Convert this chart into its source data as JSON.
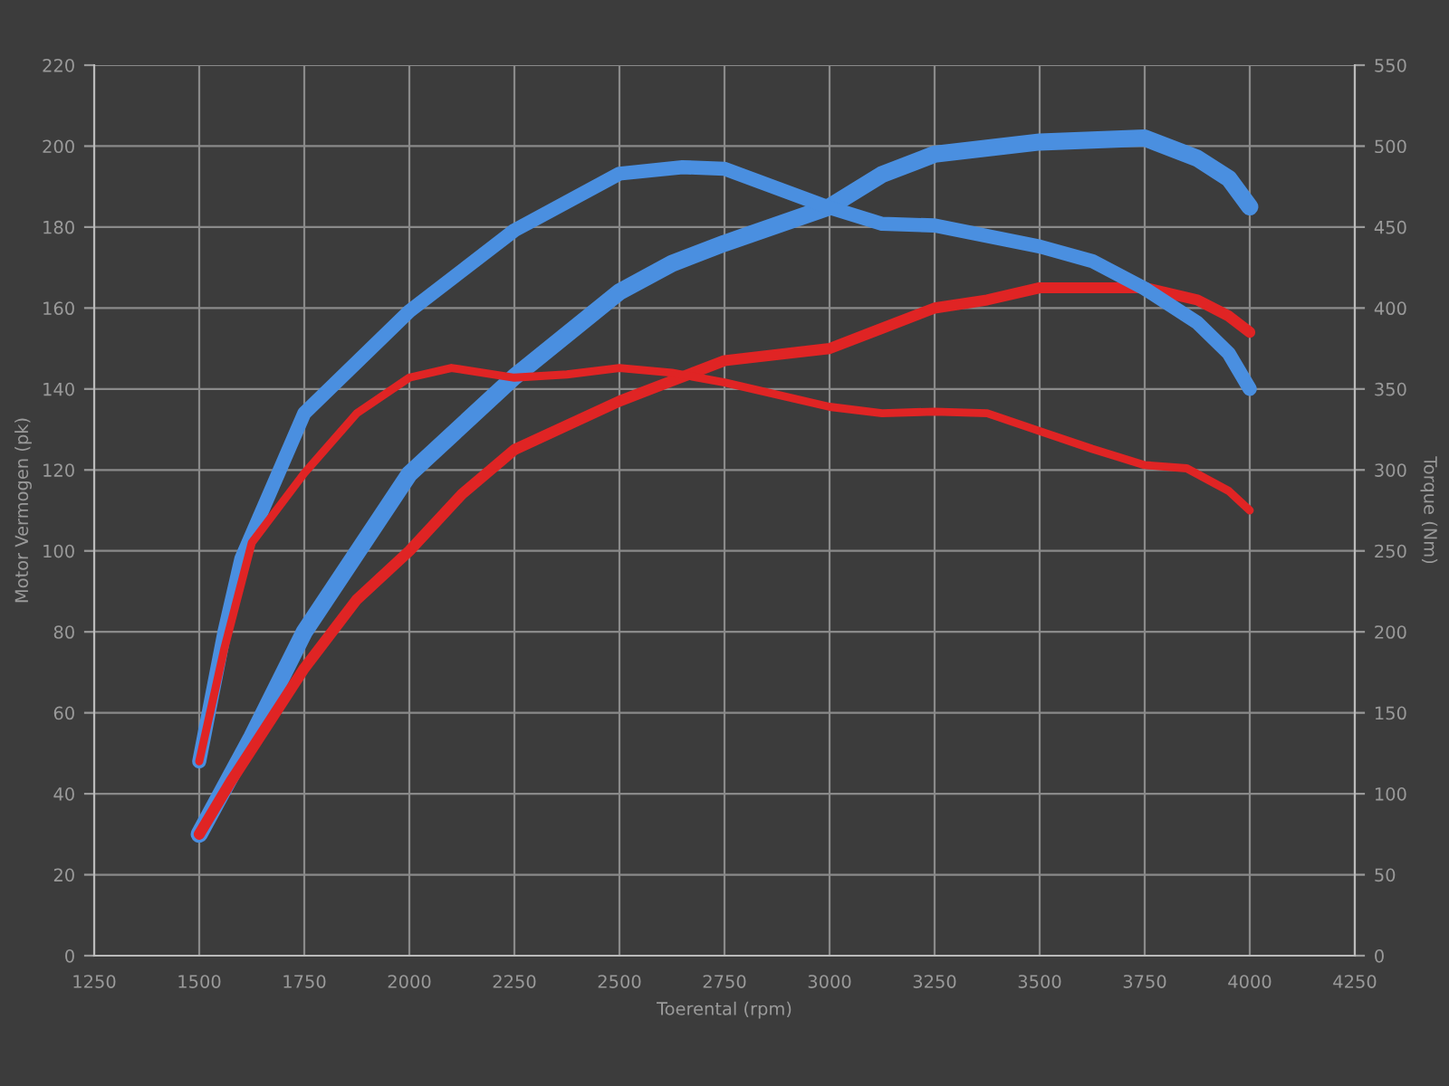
{
  "chart_data": {
    "type": "line",
    "xlabel": "Toerental (rpm)",
    "ylabel": "Motor Vermogen (pk)",
    "y2label": "Torque (Nm)",
    "xlim": [
      1250,
      4250
    ],
    "xticks": [
      1250,
      1500,
      1750,
      2000,
      2250,
      2500,
      2750,
      3000,
      3250,
      3500,
      3750,
      4000,
      4250
    ],
    "ylim": [
      0,
      220
    ],
    "yticks": [
      0,
      20,
      40,
      60,
      80,
      100,
      120,
      140,
      160,
      180,
      200,
      220
    ],
    "y2lim": [
      0,
      550
    ],
    "y2ticks": [
      0,
      50,
      100,
      150,
      200,
      250,
      300,
      350,
      400,
      450,
      500,
      550
    ],
    "grid": true,
    "marker": "none",
    "line_style": "solid",
    "series": [
      {
        "color": "#4a8fe0",
        "x": [
          1500,
          1625,
          1750,
          2000,
          2250,
          2500,
          2625,
          2750,
          3000,
          3125,
          3250,
          3500,
          3750,
          3875,
          3950,
          4000
        ],
        "values": [
          30,
          54,
          80,
          119,
          143,
          164,
          171,
          176,
          185,
          193,
          198,
          201,
          202,
          197,
          192,
          185
        ]
      },
      {
        "color": "#4a8fe0",
        "axis": "y2",
        "x": [
          1500,
          1560,
          1600,
          1750,
          2000,
          2250,
          2500,
          2650,
          2750,
          3000,
          3125,
          3250,
          3500,
          3625,
          3750,
          3875,
          3950,
          4000
        ],
        "values": [
          120,
          200,
          245,
          335,
          398,
          448,
          483,
          487,
          486,
          462,
          452,
          451,
          438,
          429,
          412,
          391,
          372,
          350
        ]
      },
      {
        "color": "#e02424",
        "x": [
          1500,
          1575,
          1750,
          1875,
          2000,
          2125,
          2250,
          2500,
          2625,
          2750,
          3000,
          3125,
          3250,
          3375,
          3500,
          3750,
          3875,
          3950,
          4000
        ],
        "values": [
          30,
          43,
          71,
          88,
          100,
          114,
          125,
          137,
          142,
          147,
          150,
          155,
          160,
          162,
          165,
          165,
          162,
          158,
          154
        ]
      },
      {
        "color": "#e02424",
        "axis": "y2",
        "x": [
          1500,
          1560,
          1625,
          1750,
          1875,
          2000,
          2100,
          2250,
          2375,
          2500,
          2625,
          2750,
          3000,
          3125,
          3250,
          3375,
          3500,
          3625,
          3750,
          3850,
          3950,
          4000
        ],
        "values": [
          120,
          190,
          255,
          298,
          335,
          357,
          363,
          357,
          359,
          363,
          360,
          354,
          339,
          335,
          336,
          335,
          324,
          313,
          303,
          301,
          287,
          275
        ]
      }
    ]
  }
}
